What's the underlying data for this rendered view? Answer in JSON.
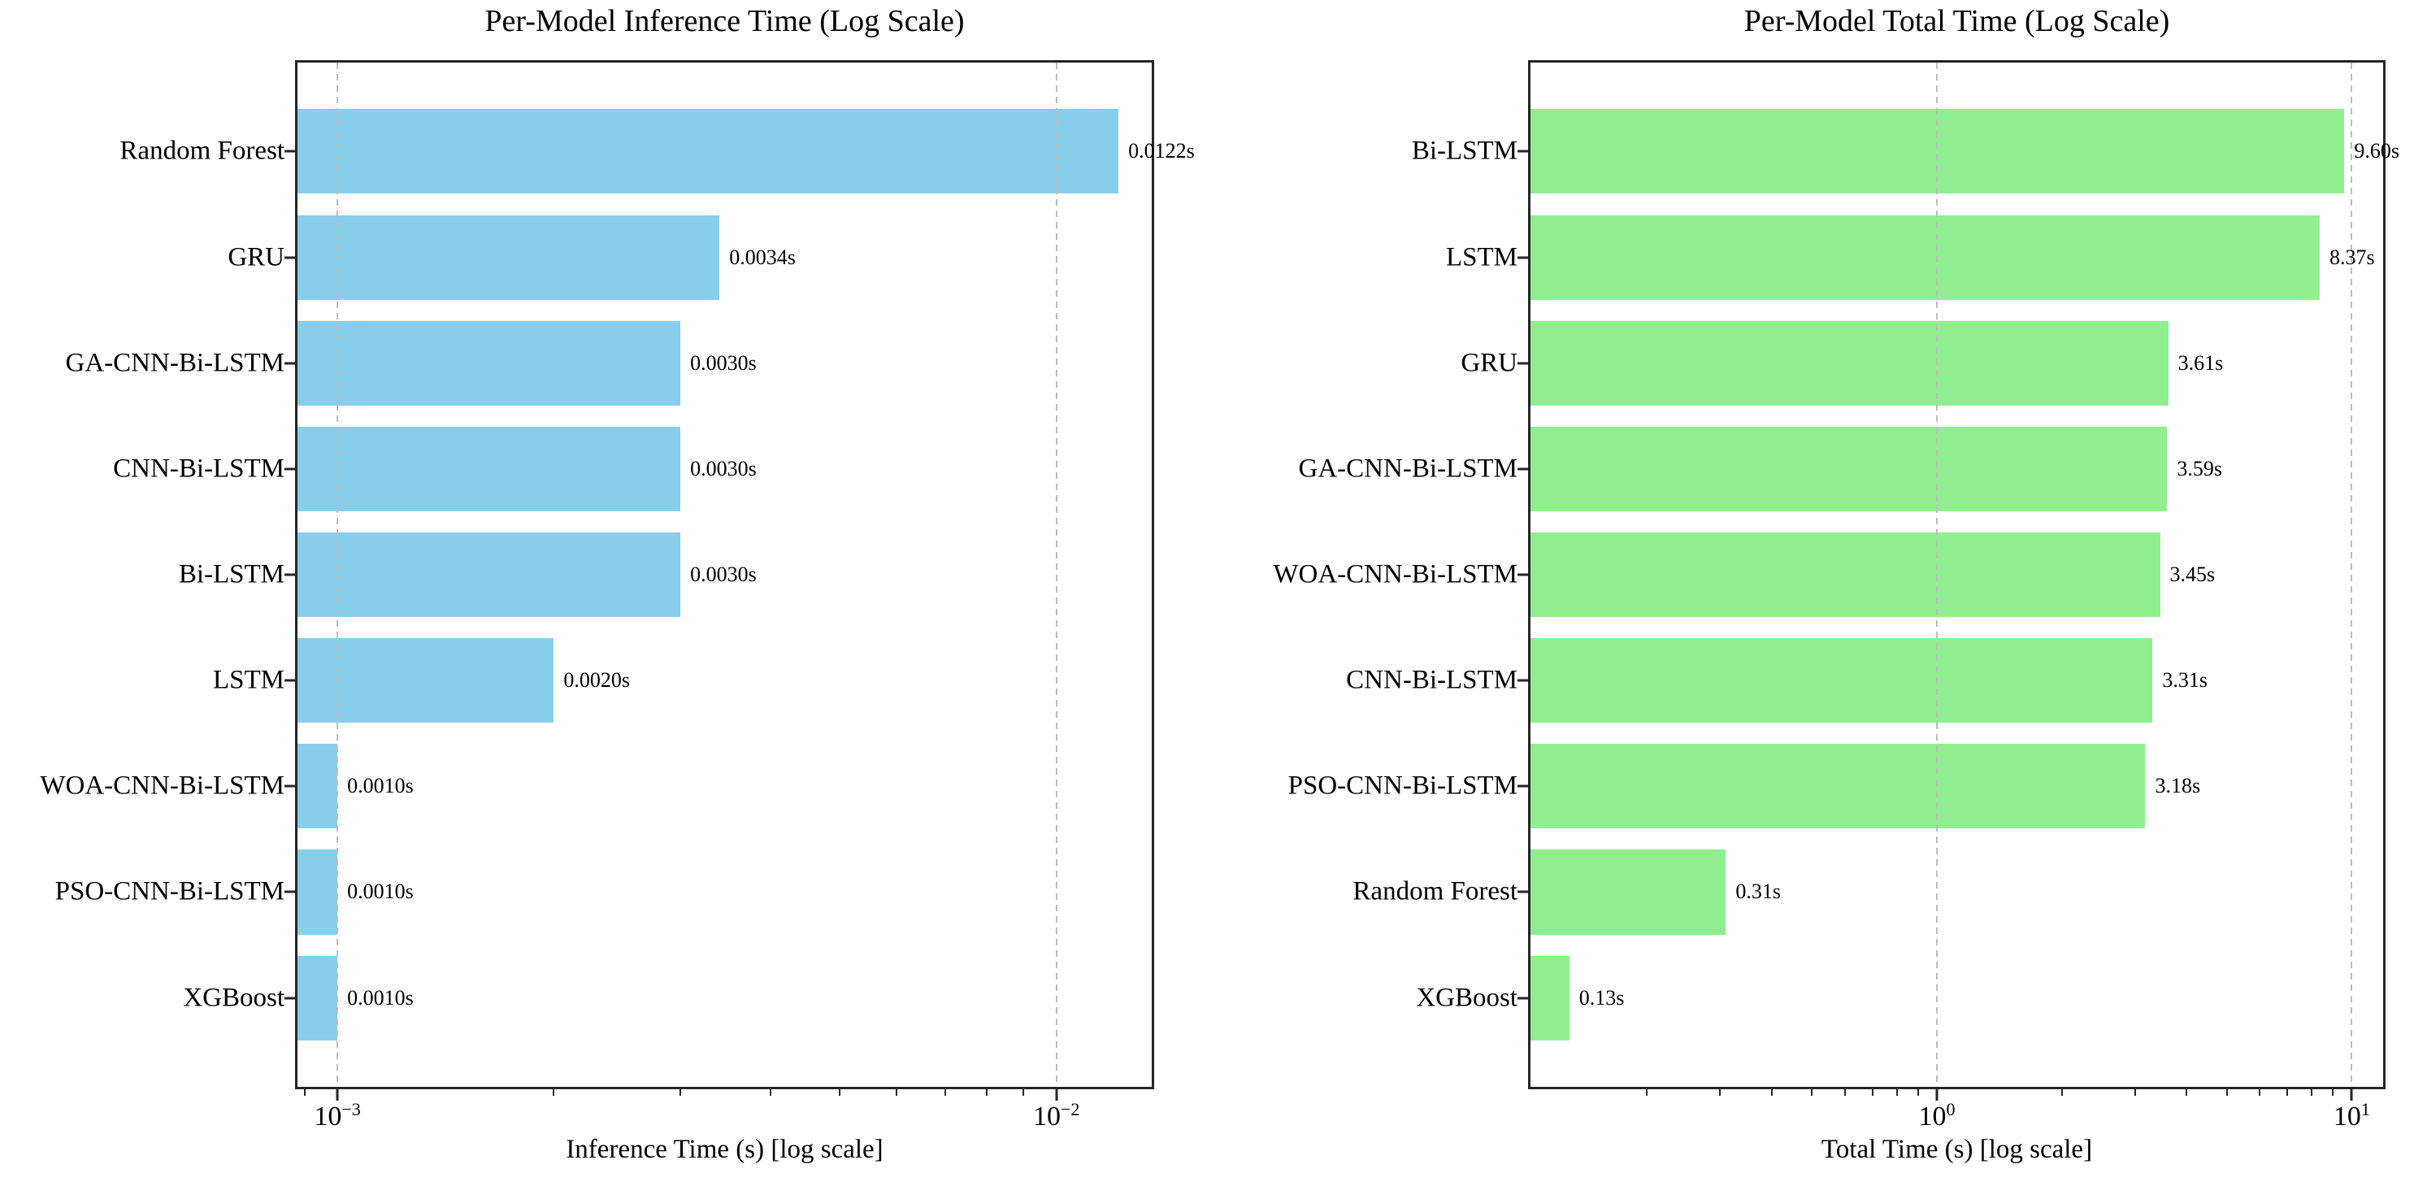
{
  "figure": {
    "background": "#ffffff",
    "text_color": "#000000",
    "spine_color": "#262626",
    "grid_color": "#bdbdbd"
  },
  "chart_data": [
    {
      "type": "bar",
      "orientation": "horizontal",
      "title": "Per-Model Inference Time (Log Scale)",
      "xlabel": "Inference Time (s) [log scale]",
      "x_scale": "log",
      "xlim": [
        0.00088,
        0.01357
      ],
      "grid": "vertical-dashed-major",
      "bar_color": "#87CEEB",
      "categories": [
        "Random Forest",
        "GRU",
        "GA-CNN-Bi-LSTM",
        "CNN-Bi-LSTM",
        "Bi-LSTM",
        "LSTM",
        "WOA-CNN-Bi-LSTM",
        "PSO-CNN-Bi-LSTM",
        "XGBoost"
      ],
      "values": [
        0.0122,
        0.0034,
        0.003,
        0.003,
        0.003,
        0.002,
        0.001,
        0.001,
        0.001
      ],
      "value_labels": [
        "0.0122s",
        "0.0034s",
        "0.0030s",
        "0.0030s",
        "0.0030s",
        "0.0020s",
        "0.0010s",
        "0.0010s",
        "0.0010s"
      ],
      "x_major_ticks": [
        {
          "value": 0.001,
          "label": "10^-3"
        },
        {
          "value": 0.01,
          "label": "10^-2"
        }
      ]
    },
    {
      "type": "bar",
      "orientation": "horizontal",
      "title": "Per-Model Total Time (Log Scale)",
      "xlabel": "Total Time (s) [log scale]",
      "x_scale": "log",
      "xlim": [
        0.1048,
        11.9
      ],
      "grid": "vertical-dashed-major",
      "bar_color": "#90EE90",
      "categories": [
        "Bi-LSTM",
        "LSTM",
        "GRU",
        "GA-CNN-Bi-LSTM",
        "WOA-CNN-Bi-LSTM",
        "CNN-Bi-LSTM",
        "PSO-CNN-Bi-LSTM",
        "Random Forest",
        "XGBoost"
      ],
      "values": [
        9.6,
        8.37,
        3.61,
        3.59,
        3.45,
        3.31,
        3.18,
        0.31,
        0.13
      ],
      "value_labels": [
        "9.60s",
        "8.37s",
        "3.61s",
        "3.59s",
        "3.45s",
        "3.31s",
        "3.18s",
        "0.31s",
        "0.13s"
      ],
      "x_major_ticks": [
        {
          "value": 1,
          "label": "10^0"
        },
        {
          "value": 10,
          "label": "10^1"
        }
      ]
    }
  ]
}
